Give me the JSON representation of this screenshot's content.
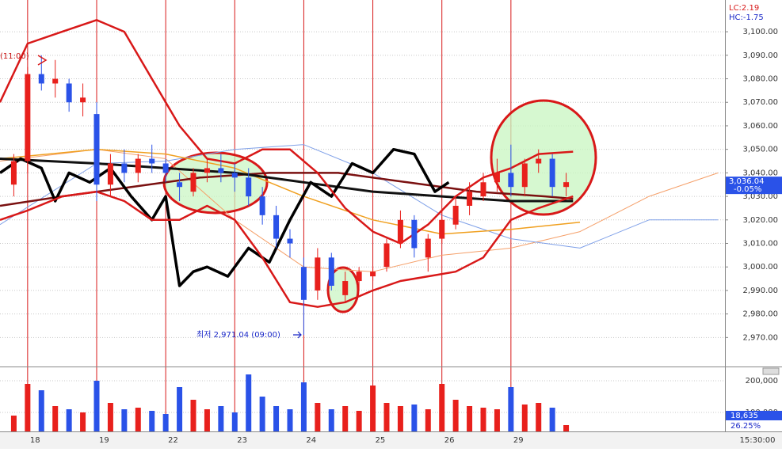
{
  "chart_data": {
    "type": "candlestick",
    "indicator_lc": "LC:2.19",
    "indicator_hc": "HC:-1.75",
    "xlim": [
      -0.4,
      10.1
    ],
    "xticks": [
      {
        "value": 0,
        "label": "18"
      },
      {
        "value": 1,
        "label": "19"
      },
      {
        "value": 2,
        "label": "22"
      },
      {
        "value": 3,
        "label": "23"
      },
      {
        "value": 4,
        "label": "24"
      },
      {
        "value": 5,
        "label": "25"
      },
      {
        "value": 6,
        "label": "26"
      },
      {
        "value": 7,
        "label": "29"
      }
    ],
    "ylim": [
      2958,
      3113.5
    ],
    "yticks": [
      {
        "value": 3100,
        "label": "3,100.00"
      },
      {
        "value": 3090,
        "label": "3,090.00"
      },
      {
        "value": 3080,
        "label": "3,080.00"
      },
      {
        "value": 3070,
        "label": "3,070.00"
      },
      {
        "value": 3060,
        "label": "3,060.00"
      },
      {
        "value": 3050,
        "label": "3,050.00"
      },
      {
        "value": 3040,
        "label": "3,040.00"
      },
      {
        "value": 3030,
        "label": "3,030.00"
      },
      {
        "value": 3020,
        "label": "3,020.00"
      },
      {
        "value": 3010,
        "label": "3,010.00"
      },
      {
        "value": 3000,
        "label": "3,000.00"
      },
      {
        "value": 2990,
        "label": "2,990.00"
      },
      {
        "value": 2980,
        "label": "2,980.00"
      },
      {
        "value": 2970,
        "label": "2,970.00"
      }
    ],
    "grid": true,
    "up_color": "#e8201c",
    "down_color": "#2a52e8",
    "candles": {
      "x": [
        -0.2,
        0.0,
        0.2,
        0.4,
        0.6,
        0.8,
        1.0,
        1.2,
        1.4,
        1.6,
        1.8,
        2.0,
        2.2,
        2.4,
        2.6,
        2.8,
        3.0,
        3.2,
        3.4,
        3.6,
        3.8,
        4.0,
        4.2,
        4.4,
        4.6,
        4.8,
        5.0,
        5.2,
        5.4,
        5.6,
        5.8,
        6.0,
        6.2,
        6.4,
        6.6,
        6.8,
        7.0,
        7.2,
        7.4,
        7.6,
        7.8
      ],
      "open": [
        3035,
        3045,
        3082,
        3078,
        3078,
        3070,
        3065,
        3035,
        3044,
        3040,
        3046,
        3044,
        3036,
        3032,
        3040,
        3042,
        3040,
        3038,
        3030,
        3022,
        3012,
        3000,
        2990,
        3004,
        2988,
        2994,
        2996,
        3000,
        3010,
        3020,
        3004,
        3012,
        3018,
        3026,
        3030,
        3036,
        3040,
        3034,
        3044,
        3046,
        3034
      ],
      "high": [
        3048,
        3085,
        3090,
        3088,
        3080,
        3078,
        3070,
        3048,
        3050,
        3048,
        3052,
        3046,
        3040,
        3042,
        3046,
        3048,
        3044,
        3042,
        3034,
        3026,
        3016,
        3004,
        3008,
        3006,
        2998,
        3000,
        3000,
        3012,
        3024,
        3022,
        3014,
        3024,
        3030,
        3036,
        3040,
        3046,
        3052,
        3046,
        3050,
        3048,
        3040
      ],
      "low": [
        3030,
        3040,
        3075,
        3072,
        3066,
        3064,
        3028,
        3030,
        3036,
        3036,
        3040,
        3036,
        3028,
        3030,
        3036,
        3036,
        3032,
        3026,
        3018,
        3008,
        3004,
        2971.04,
        2986,
        2990,
        2985,
        2990,
        2994,
        2998,
        3008,
        3004,
        2998,
        3010,
        3016,
        3022,
        3028,
        3032,
        3030,
        3030,
        3040,
        3030,
        3030
      ],
      "close": [
        3045,
        3082,
        3078,
        3080,
        3070,
        3072,
        3035,
        3044,
        3040,
        3046,
        3044,
        3040,
        3034,
        3040,
        3042,
        3040,
        3038,
        3030,
        3022,
        3012,
        3010,
        2986,
        3004,
        2992,
        2994,
        2998,
        2998,
        3010,
        3020,
        3008,
        3012,
        3020,
        3026,
        3032,
        3036,
        3040,
        3034,
        3044,
        3046,
        3034,
        3036.04
      ]
    },
    "last_price": {
      "value": 3036.04,
      "label": "3,036.04"
    },
    "last_change": "-0.05%",
    "overlays": [
      {
        "color": "#f5a06a",
        "line_width": 1,
        "x": [
          -0.4,
          1,
          2,
          3,
          4,
          5,
          6,
          7,
          8,
          9,
          10
        ],
        "values": [
          3045,
          3050,
          3046,
          3020,
          3000,
          2998,
          3005,
          3008,
          3015,
          3030,
          3040
        ]
      },
      {
        "color": "#7fa0e8",
        "line_width": 1,
        "x": [
          -0.4,
          1,
          2,
          3,
          4,
          5,
          6,
          7,
          8,
          9,
          10
        ],
        "values": [
          3018,
          3044,
          3045,
          3050,
          3052,
          3040,
          3022,
          3012,
          3008,
          3020,
          3020
        ]
      },
      {
        "color": "#f0a020",
        "line_width": 1.5,
        "x": [
          -0.4,
          1,
          2,
          3,
          4,
          5,
          6,
          7,
          8
        ],
        "values": [
          3046,
          3050,
          3048,
          3042,
          3030,
          3020,
          3014,
          3016,
          3019
        ]
      },
      {
        "color": "#7a1010",
        "line_width": 2.5,
        "x": [
          -0.4,
          0.5,
          1.5,
          2.5,
          3.5,
          4.5,
          5.5,
          6.5,
          7.5,
          7.9
        ],
        "values": [
          3026,
          3030,
          3034,
          3038,
          3040,
          3040,
          3036,
          3032,
          3030,
          3029
        ]
      },
      {
        "color": "#111111",
        "line_width": 3,
        "x": [
          -0.4,
          1,
          2,
          3,
          4,
          5,
          6,
          7,
          7.9
        ],
        "values": [
          3046,
          3044,
          3042,
          3040,
          3036,
          3032,
          3030,
          3028,
          3028
        ]
      },
      {
        "color": "#000000",
        "line_width": 3.5,
        "x": [
          -0.4,
          -0.1,
          0.2,
          0.4,
          0.6,
          0.9,
          1.2,
          1.5,
          1.8,
          2.0,
          2.2,
          2.4,
          2.6,
          2.9,
          3.2,
          3.5,
          3.8,
          4.1,
          4.4,
          4.7,
          5.0,
          5.3,
          5.6,
          5.9,
          6.1
        ],
        "values": [
          3040,
          3046,
          3042,
          3028,
          3040,
          3036,
          3042,
          3030,
          3020,
          3030,
          2992,
          2998,
          3000,
          2996,
          3008,
          3002,
          3020,
          3036,
          3030,
          3044,
          3040,
          3050,
          3048,
          3032,
          3036
        ]
      },
      {
        "color": "#d81818",
        "line_width": 2.5,
        "x": [
          -0.4,
          0,
          0.5,
          1.0,
          1.4,
          1.8,
          2.2,
          2.6,
          3.0,
          3.4,
          3.8,
          4.2,
          4.6,
          5.0,
          5.4,
          5.8,
          6.2,
          6.6,
          7.0,
          7.4,
          7.9
        ],
        "values": [
          3070,
          3095,
          3100,
          3105,
          3100,
          3080,
          3060,
          3046,
          3044,
          3050,
          3050,
          3040,
          3025,
          3015,
          3010,
          3018,
          3030,
          3038,
          3042,
          3048,
          3049
        ]
      },
      {
        "color": "#d81818",
        "line_width": 2.5,
        "x": [
          -0.4,
          0,
          0.5,
          1.0,
          1.4,
          1.8,
          2.2,
          2.6,
          3.0,
          3.4,
          3.8,
          4.2,
          4.6,
          5.0,
          5.4,
          5.8,
          6.2,
          6.6,
          7.0,
          7.4,
          7.9
        ],
        "values": [
          3020,
          3024,
          3030,
          3032,
          3028,
          3020,
          3020,
          3026,
          3020,
          3004,
          2985,
          2983,
          2985,
          2990,
          2994,
          2996,
          2998,
          3004,
          3020,
          3025,
          3030
        ]
      }
    ],
    "annotation_high": "(11:00)",
    "annotation_low": "최저 2,971.04 (09:00)",
    "volume": {
      "ylim": [
        40000,
        240000
      ],
      "yticks": [
        {
          "value": 200000,
          "label": "200,000"
        },
        {
          "value": 100000,
          "label": "100,000"
        }
      ],
      "values": [
        90000,
        190000,
        170000,
        120000,
        110000,
        100000,
        200000,
        130000,
        110000,
        115000,
        105000,
        95000,
        180000,
        140000,
        110000,
        120000,
        100000,
        220000,
        150000,
        120000,
        110000,
        195000,
        130000,
        110000,
        120000,
        105000,
        185000,
        130000,
        120000,
        125000,
        110000,
        190000,
        140000,
        120000,
        115000,
        110000,
        180000,
        125000,
        130000,
        115000,
        60000
      ],
      "last": "18,635",
      "last_ratio": "26.25%"
    },
    "time_label": "15:30:00"
  }
}
